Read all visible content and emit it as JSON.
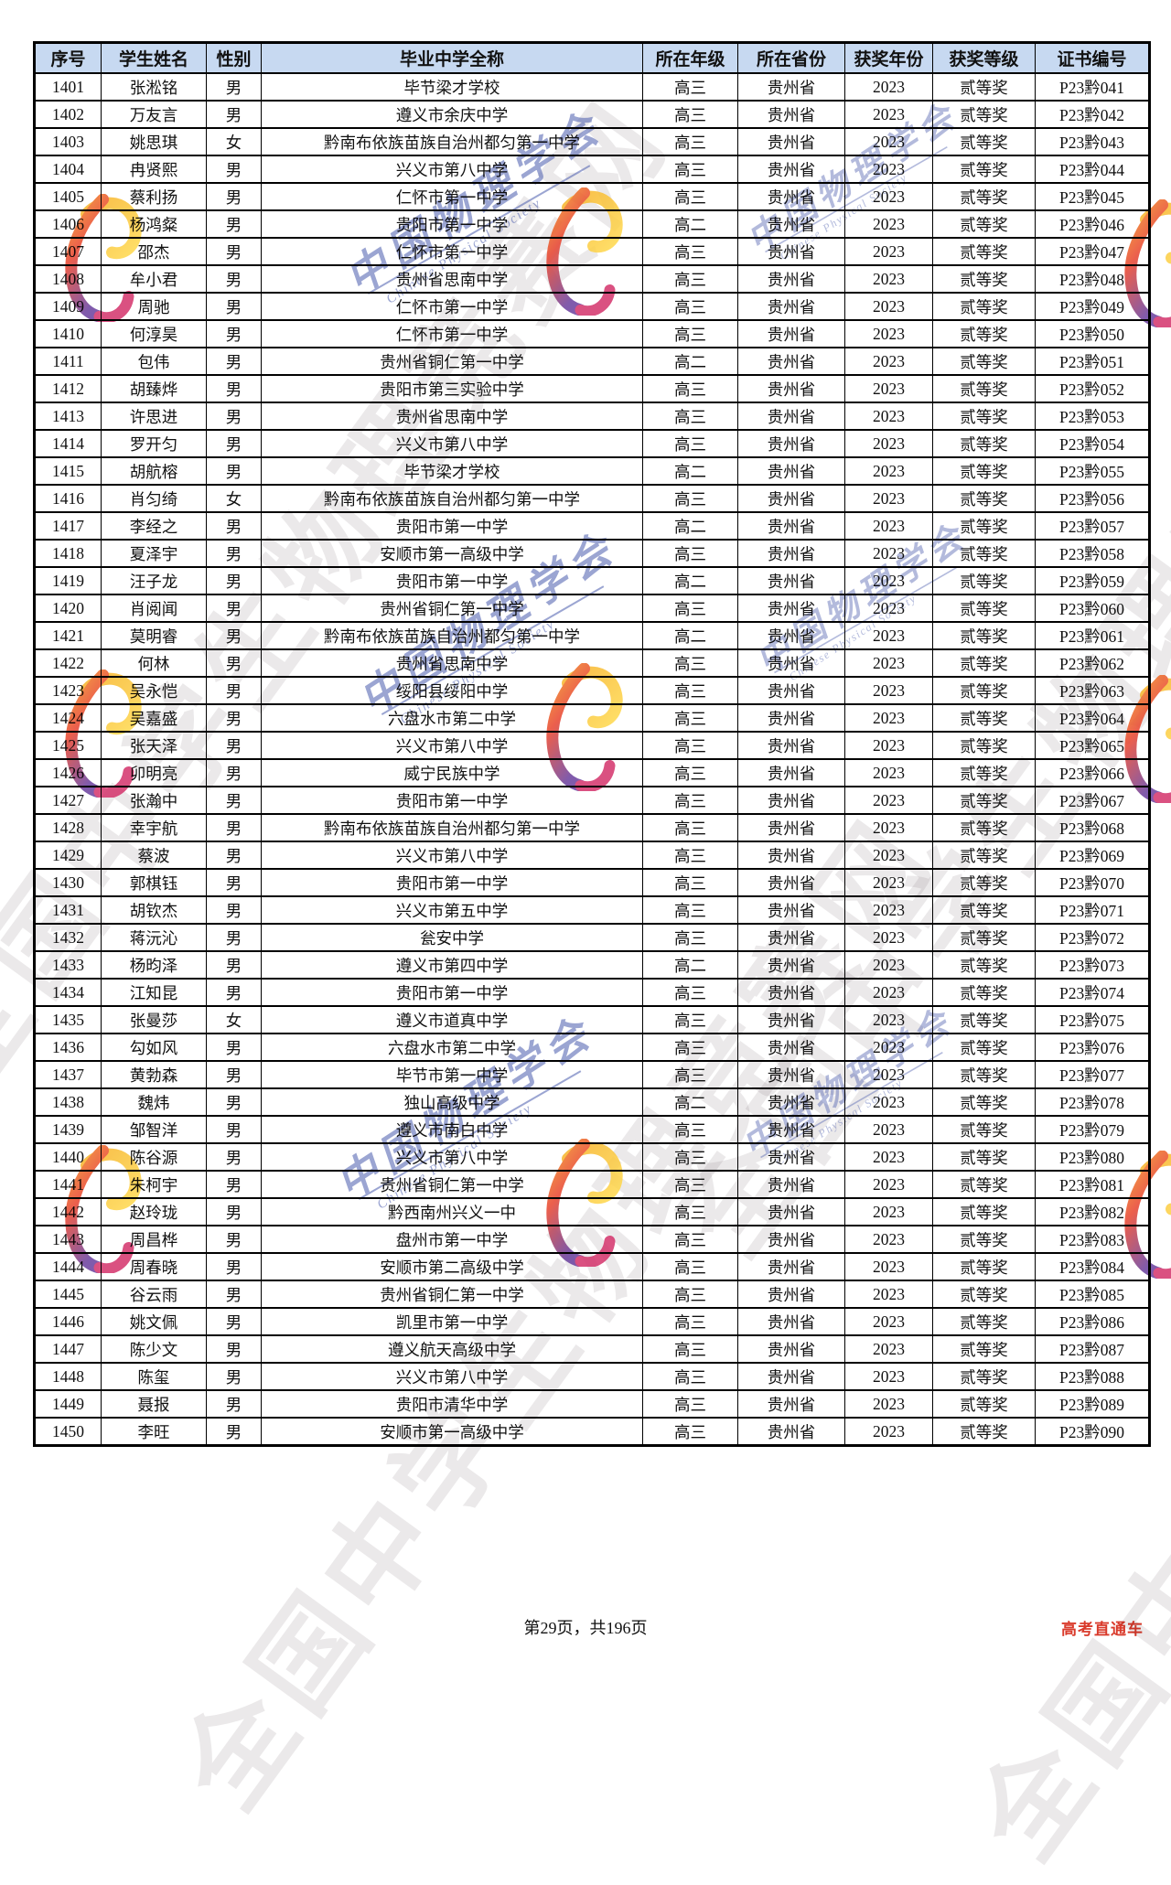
{
  "table": {
    "columns": [
      "序号",
      "学生姓名",
      "性别",
      "毕业中学全称",
      "所在年级",
      "所在省份",
      "获奖年份",
      "获奖等级",
      "证书编号"
    ],
    "column_keys": [
      "num",
      "name",
      "gender",
      "school",
      "grade",
      "province",
      "year",
      "award",
      "cert"
    ],
    "rows": [
      {
        "num": "1401",
        "name": "张淞铭",
        "gender": "男",
        "school": "毕节梁才学校",
        "grade": "高三",
        "province": "贵州省",
        "year": "2023",
        "award": "贰等奖",
        "cert": "P23黔041"
      },
      {
        "num": "1402",
        "name": "万友言",
        "gender": "男",
        "school": "遵义市余庆中学",
        "grade": "高三",
        "province": "贵州省",
        "year": "2023",
        "award": "贰等奖",
        "cert": "P23黔042"
      },
      {
        "num": "1403",
        "name": "姚思琪",
        "gender": "女",
        "school": "黔南布依族苗族自治州都匀第一中学",
        "grade": "高三",
        "province": "贵州省",
        "year": "2023",
        "award": "贰等奖",
        "cert": "P23黔043"
      },
      {
        "num": "1404",
        "name": "冉贤熙",
        "gender": "男",
        "school": "兴义市第八中学",
        "grade": "高三",
        "province": "贵州省",
        "year": "2023",
        "award": "贰等奖",
        "cert": "P23黔044"
      },
      {
        "num": "1405",
        "name": "蔡利扬",
        "gender": "男",
        "school": "仁怀市第一中学",
        "grade": "高三",
        "province": "贵州省",
        "year": "2023",
        "award": "贰等奖",
        "cert": "P23黔045"
      },
      {
        "num": "1406",
        "name": "杨鸿粲",
        "gender": "男",
        "school": "贵阳市第一中学",
        "grade": "高二",
        "province": "贵州省",
        "year": "2023",
        "award": "贰等奖",
        "cert": "P23黔046"
      },
      {
        "num": "1407",
        "name": "邵杰",
        "gender": "男",
        "school": "仁怀市第一中学",
        "grade": "高三",
        "province": "贵州省",
        "year": "2023",
        "award": "贰等奖",
        "cert": "P23黔047"
      },
      {
        "num": "1408",
        "name": "牟小君",
        "gender": "男",
        "school": "贵州省思南中学",
        "grade": "高三",
        "province": "贵州省",
        "year": "2023",
        "award": "贰等奖",
        "cert": "P23黔048"
      },
      {
        "num": "1409",
        "name": "周驰",
        "gender": "男",
        "school": "仁怀市第一中学",
        "grade": "高三",
        "province": "贵州省",
        "year": "2023",
        "award": "贰等奖",
        "cert": "P23黔049"
      },
      {
        "num": "1410",
        "name": "何淳昊",
        "gender": "男",
        "school": "仁怀市第一中学",
        "grade": "高三",
        "province": "贵州省",
        "year": "2023",
        "award": "贰等奖",
        "cert": "P23黔050"
      },
      {
        "num": "1411",
        "name": "包伟",
        "gender": "男",
        "school": "贵州省铜仁第一中学",
        "grade": "高二",
        "province": "贵州省",
        "year": "2023",
        "award": "贰等奖",
        "cert": "P23黔051"
      },
      {
        "num": "1412",
        "name": "胡臻烨",
        "gender": "男",
        "school": "贵阳市第三实验中学",
        "grade": "高三",
        "province": "贵州省",
        "year": "2023",
        "award": "贰等奖",
        "cert": "P23黔052"
      },
      {
        "num": "1413",
        "name": "许思进",
        "gender": "男",
        "school": "贵州省思南中学",
        "grade": "高三",
        "province": "贵州省",
        "year": "2023",
        "award": "贰等奖",
        "cert": "P23黔053"
      },
      {
        "num": "1414",
        "name": "罗开匀",
        "gender": "男",
        "school": "兴义市第八中学",
        "grade": "高三",
        "province": "贵州省",
        "year": "2023",
        "award": "贰等奖",
        "cert": "P23黔054"
      },
      {
        "num": "1415",
        "name": "胡航榕",
        "gender": "男",
        "school": "毕节梁才学校",
        "grade": "高二",
        "province": "贵州省",
        "year": "2023",
        "award": "贰等奖",
        "cert": "P23黔055"
      },
      {
        "num": "1416",
        "name": "肖匀绮",
        "gender": "女",
        "school": "黔南布依族苗族自治州都匀第一中学",
        "grade": "高三",
        "province": "贵州省",
        "year": "2023",
        "award": "贰等奖",
        "cert": "P23黔056"
      },
      {
        "num": "1417",
        "name": "李经之",
        "gender": "男",
        "school": "贵阳市第一中学",
        "grade": "高二",
        "province": "贵州省",
        "year": "2023",
        "award": "贰等奖",
        "cert": "P23黔057"
      },
      {
        "num": "1418",
        "name": "夏泽宇",
        "gender": "男",
        "school": "安顺市第一高级中学",
        "grade": "高三",
        "province": "贵州省",
        "year": "2023",
        "award": "贰等奖",
        "cert": "P23黔058"
      },
      {
        "num": "1419",
        "name": "汪子龙",
        "gender": "男",
        "school": "贵阳市第一中学",
        "grade": "高二",
        "province": "贵州省",
        "year": "2023",
        "award": "贰等奖",
        "cert": "P23黔059"
      },
      {
        "num": "1420",
        "name": "肖阅闻",
        "gender": "男",
        "school": "贵州省铜仁第一中学",
        "grade": "高三",
        "province": "贵州省",
        "year": "2023",
        "award": "贰等奖",
        "cert": "P23黔060"
      },
      {
        "num": "1421",
        "name": "莫明睿",
        "gender": "男",
        "school": "黔南布依族苗族自治州都匀第一中学",
        "grade": "高二",
        "province": "贵州省",
        "year": "2023",
        "award": "贰等奖",
        "cert": "P23黔061"
      },
      {
        "num": "1422",
        "name": "何林",
        "gender": "男",
        "school": "贵州省思南中学",
        "grade": "高三",
        "province": "贵州省",
        "year": "2023",
        "award": "贰等奖",
        "cert": "P23黔062"
      },
      {
        "num": "1423",
        "name": "吴永恺",
        "gender": "男",
        "school": "绥阳县绥阳中学",
        "grade": "高三",
        "province": "贵州省",
        "year": "2023",
        "award": "贰等奖",
        "cert": "P23黔063"
      },
      {
        "num": "1424",
        "name": "吴嘉盛",
        "gender": "男",
        "school": "六盘水市第二中学",
        "grade": "高三",
        "province": "贵州省",
        "year": "2023",
        "award": "贰等奖",
        "cert": "P23黔064"
      },
      {
        "num": "1425",
        "name": "张天泽",
        "gender": "男",
        "school": "兴义市第八中学",
        "grade": "高三",
        "province": "贵州省",
        "year": "2023",
        "award": "贰等奖",
        "cert": "P23黔065"
      },
      {
        "num": "1426",
        "name": "卯明亮",
        "gender": "男",
        "school": "威宁民族中学",
        "grade": "高三",
        "province": "贵州省",
        "year": "2023",
        "award": "贰等奖",
        "cert": "P23黔066"
      },
      {
        "num": "1427",
        "name": "张瀚中",
        "gender": "男",
        "school": "贵阳市第一中学",
        "grade": "高三",
        "province": "贵州省",
        "year": "2023",
        "award": "贰等奖",
        "cert": "P23黔067"
      },
      {
        "num": "1428",
        "name": "幸宇航",
        "gender": "男",
        "school": "黔南布依族苗族自治州都匀第一中学",
        "grade": "高三",
        "province": "贵州省",
        "year": "2023",
        "award": "贰等奖",
        "cert": "P23黔068"
      },
      {
        "num": "1429",
        "name": "蔡波",
        "gender": "男",
        "school": "兴义市第八中学",
        "grade": "高三",
        "province": "贵州省",
        "year": "2023",
        "award": "贰等奖",
        "cert": "P23黔069"
      },
      {
        "num": "1430",
        "name": "郭棋钰",
        "gender": "男",
        "school": "贵阳市第一中学",
        "grade": "高三",
        "province": "贵州省",
        "year": "2023",
        "award": "贰等奖",
        "cert": "P23黔070"
      },
      {
        "num": "1431",
        "name": "胡钦杰",
        "gender": "男",
        "school": "兴义市第五中学",
        "grade": "高三",
        "province": "贵州省",
        "year": "2023",
        "award": "贰等奖",
        "cert": "P23黔071"
      },
      {
        "num": "1432",
        "name": "蒋沅沁",
        "gender": "男",
        "school": "瓮安中学",
        "grade": "高三",
        "province": "贵州省",
        "year": "2023",
        "award": "贰等奖",
        "cert": "P23黔072"
      },
      {
        "num": "1433",
        "name": "杨昀泽",
        "gender": "男",
        "school": "遵义市第四中学",
        "grade": "高二",
        "province": "贵州省",
        "year": "2023",
        "award": "贰等奖",
        "cert": "P23黔073"
      },
      {
        "num": "1434",
        "name": "江知昆",
        "gender": "男",
        "school": "贵阳市第一中学",
        "grade": "高三",
        "province": "贵州省",
        "year": "2023",
        "award": "贰等奖",
        "cert": "P23黔074"
      },
      {
        "num": "1435",
        "name": "张曼莎",
        "gender": "女",
        "school": "遵义市道真中学",
        "grade": "高三",
        "province": "贵州省",
        "year": "2023",
        "award": "贰等奖",
        "cert": "P23黔075"
      },
      {
        "num": "1436",
        "name": "勾如风",
        "gender": "男",
        "school": "六盘水市第二中学",
        "grade": "高三",
        "province": "贵州省",
        "year": "2023",
        "award": "贰等奖",
        "cert": "P23黔076"
      },
      {
        "num": "1437",
        "name": "黄勃森",
        "gender": "男",
        "school": "毕节市第一中学",
        "grade": "高三",
        "province": "贵州省",
        "year": "2023",
        "award": "贰等奖",
        "cert": "P23黔077"
      },
      {
        "num": "1438",
        "name": "魏炜",
        "gender": "男",
        "school": "独山高级中学",
        "grade": "高二",
        "province": "贵州省",
        "year": "2023",
        "award": "贰等奖",
        "cert": "P23黔078"
      },
      {
        "num": "1439",
        "name": "邹智洋",
        "gender": "男",
        "school": "遵义市南白中学",
        "grade": "高三",
        "province": "贵州省",
        "year": "2023",
        "award": "贰等奖",
        "cert": "P23黔079"
      },
      {
        "num": "1440",
        "name": "陈谷源",
        "gender": "男",
        "school": "兴义市第八中学",
        "grade": "高三",
        "province": "贵州省",
        "year": "2023",
        "award": "贰等奖",
        "cert": "P23黔080"
      },
      {
        "num": "1441",
        "name": "朱柯宇",
        "gender": "男",
        "school": "贵州省铜仁第一中学",
        "grade": "高三",
        "province": "贵州省",
        "year": "2023",
        "award": "贰等奖",
        "cert": "P23黔081"
      },
      {
        "num": "1442",
        "name": "赵玲珑",
        "gender": "男",
        "school": "黔西南州兴义一中",
        "grade": "高三",
        "province": "贵州省",
        "year": "2023",
        "award": "贰等奖",
        "cert": "P23黔082"
      },
      {
        "num": "1443",
        "name": "周昌桦",
        "gender": "男",
        "school": "盘州市第一中学",
        "grade": "高三",
        "province": "贵州省",
        "year": "2023",
        "award": "贰等奖",
        "cert": "P23黔083"
      },
      {
        "num": "1444",
        "name": "周春晓",
        "gender": "男",
        "school": "安顺市第二高级中学",
        "grade": "高三",
        "province": "贵州省",
        "year": "2023",
        "award": "贰等奖",
        "cert": "P23黔084"
      },
      {
        "num": "1445",
        "name": "谷云雨",
        "gender": "男",
        "school": "贵州省铜仁第一中学",
        "grade": "高三",
        "province": "贵州省",
        "year": "2023",
        "award": "贰等奖",
        "cert": "P23黔085"
      },
      {
        "num": "1446",
        "name": "姚文佩",
        "gender": "男",
        "school": "凯里市第一中学",
        "grade": "高三",
        "province": "贵州省",
        "year": "2023",
        "award": "贰等奖",
        "cert": "P23黔086"
      },
      {
        "num": "1447",
        "name": "陈少文",
        "gender": "男",
        "school": "遵义航天高级中学",
        "grade": "高三",
        "province": "贵州省",
        "year": "2023",
        "award": "贰等奖",
        "cert": "P23黔087"
      },
      {
        "num": "1448",
        "name": "陈玺",
        "gender": "男",
        "school": "兴义市第八中学",
        "grade": "高三",
        "province": "贵州省",
        "year": "2023",
        "award": "贰等奖",
        "cert": "P23黔088"
      },
      {
        "num": "1449",
        "name": "聂报",
        "gender": "男",
        "school": "贵阳市清华中学",
        "grade": "高三",
        "province": "贵州省",
        "year": "2023",
        "award": "贰等奖",
        "cert": "P23黔089"
      },
      {
        "num": "1450",
        "name": "李旺",
        "gender": "男",
        "school": "安顺市第一高级中学",
        "grade": "高三",
        "province": "贵州省",
        "year": "2023",
        "award": "贰等奖",
        "cert": "P23黔090"
      }
    ]
  },
  "footer": {
    "page_info": "第29页，共196页",
    "brand": "高考直通车"
  },
  "watermarks": {
    "site_text": "全国中学生物理竞赛网",
    "society_cn": "中国物理学会",
    "society_en": "Chinese Physical Society"
  },
  "colors": {
    "header_bg": "#c7d9f1",
    "border": "#000000",
    "brand_red": "#d93a2b",
    "watermark_blue": "#4a5cad",
    "watermark_gray": "#80767c",
    "ribbon_orange": "#f59b1e",
    "ribbon_yellow": "#ffd94d",
    "ribbon_red": "#e8432e",
    "ribbon_purple": "#6a3f9e"
  }
}
